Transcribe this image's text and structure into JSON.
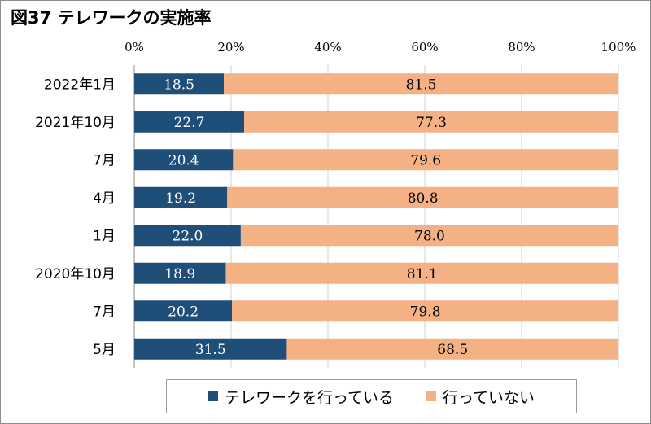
{
  "title": "図37 テレワークの実施率",
  "colors": {
    "series1": "#1f4e79",
    "series2": "#f4b183",
    "grid": "#d0d0d0",
    "axis": "#888888"
  },
  "chart_data": {
    "type": "bar",
    "orientation": "horizontal",
    "stacked": true,
    "categories": [
      "2022年1月",
      "2021年10月",
      "7月",
      "4月",
      "1月",
      "2020年10月",
      "7月",
      "5月"
    ],
    "series": [
      {
        "name": "テレワークを行っている",
        "values": [
          18.5,
          22.7,
          20.4,
          19.2,
          22.0,
          18.9,
          20.2,
          31.5
        ]
      },
      {
        "name": "行っていない",
        "values": [
          81.5,
          77.3,
          79.6,
          80.8,
          78.0,
          81.1,
          79.8,
          68.5
        ]
      }
    ],
    "xlim": [
      0,
      100
    ],
    "xticks": [
      "0%",
      "20%",
      "40%",
      "60%",
      "80%",
      "100%"
    ],
    "grid": true,
    "legend": "bottom"
  }
}
